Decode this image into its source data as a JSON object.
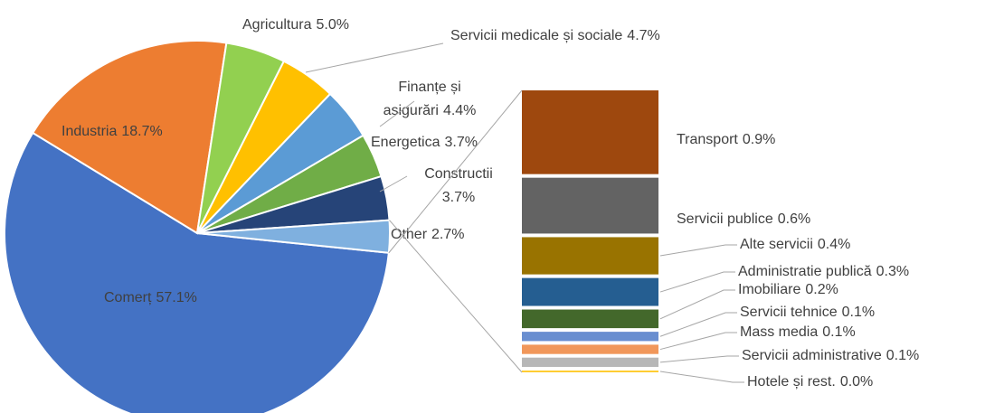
{
  "chart_data": {
    "type": "pie-of-bar",
    "categories": [
      "Comerț",
      "Industria",
      "Agricultura",
      "Servicii medicale și sociale",
      "Finanțe și asigurări",
      "Energetica",
      "Constructii",
      "Other"
    ],
    "values": [
      57.1,
      18.7,
      5.0,
      4.7,
      4.4,
      3.7,
      3.7,
      2.7
    ],
    "value_labels": [
      "57.1%",
      "18.7%",
      "5.0%",
      "4.7%",
      "4.4%",
      "3.7%",
      "3.7%",
      "2.7%"
    ],
    "colors": [
      "#4472c4",
      "#ed7d31",
      "#92d050",
      "#ffc000",
      "#5b9bd5",
      "#70ad47",
      "#264478",
      "#7fb0df"
    ],
    "bar": {
      "categories": [
        "Transport",
        "Servicii publice",
        "Alte servicii",
        "Administratie publică",
        "Imobiliare",
        "Servicii tehnice",
        "Mass media",
        "Servicii administrative",
        "Hotele și rest."
      ],
      "values": [
        0.9,
        0.6,
        0.4,
        0.3,
        0.2,
        0.1,
        0.1,
        0.1,
        0.0
      ],
      "value_labels": [
        "0.9%",
        "0.6%",
        "0.4%",
        "0.3%",
        "0.2%",
        "0.1%",
        "0.1%",
        "0.1%",
        "0.0%"
      ],
      "colors": [
        "#9e480e",
        "#636363",
        "#997300",
        "#255e91",
        "#43682b",
        "#698ed0",
        "#f1975a",
        "#b7b7b7",
        "#ffcd33"
      ]
    }
  }
}
